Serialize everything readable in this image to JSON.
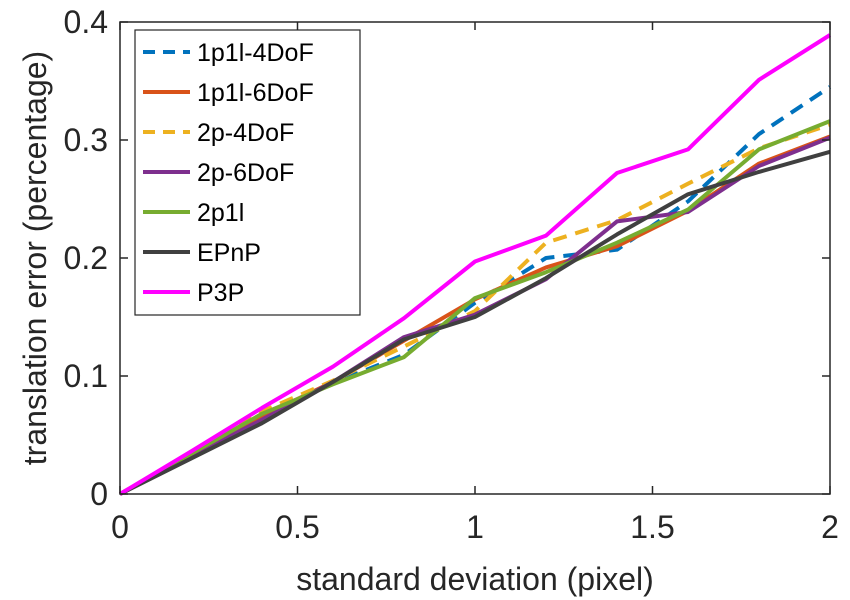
{
  "chart_data": {
    "type": "line",
    "xlabel": "standard deviation (pixel)",
    "ylabel": "translation error (percentage)",
    "xlim": [
      0,
      2
    ],
    "ylim": [
      0,
      0.4
    ],
    "xticks": [
      0,
      0.5,
      1,
      1.5,
      2
    ],
    "xtick_labels": [
      "0",
      "0.5",
      "1",
      "1.5",
      "2"
    ],
    "yticks": [
      0,
      0.1,
      0.2,
      0.3,
      0.4
    ],
    "ytick_labels": [
      "0",
      "0.1",
      "0.2",
      "0.3",
      "0.4"
    ],
    "grid": false,
    "legend_position": "top-left",
    "x": [
      0,
      0.2,
      0.4,
      0.6,
      0.8,
      1.0,
      1.2,
      1.4,
      1.6,
      1.8,
      2.0
    ],
    "series": [
      {
        "name": "1p1l-4DoF",
        "color": "#0072BD",
        "dash": "dashed",
        "values": [
          0,
          0.032,
          0.064,
          0.094,
          0.118,
          0.162,
          0.2,
          0.207,
          0.248,
          0.305,
          0.345
        ]
      },
      {
        "name": "1p1l-6DoF",
        "color": "#D95319",
        "dash": "solid",
        "values": [
          0,
          0.033,
          0.066,
          0.095,
          0.13,
          0.165,
          0.192,
          0.21,
          0.24,
          0.28,
          0.303
        ]
      },
      {
        "name": "2p-4DoF",
        "color": "#EDB120",
        "dash": "dashed",
        "values": [
          0,
          0.035,
          0.07,
          0.096,
          0.125,
          0.155,
          0.213,
          0.232,
          0.263,
          0.293,
          0.313
        ]
      },
      {
        "name": "2p-6DoF",
        "color": "#7E2F8E",
        "dash": "solid",
        "values": [
          0,
          0.032,
          0.063,
          0.095,
          0.133,
          0.152,
          0.182,
          0.231,
          0.239,
          0.278,
          0.302
        ]
      },
      {
        "name": "2p1l",
        "color": "#77AC30",
        "dash": "solid",
        "values": [
          0,
          0.034,
          0.068,
          0.093,
          0.116,
          0.166,
          0.188,
          0.213,
          0.241,
          0.292,
          0.316
        ]
      },
      {
        "name": "EPnP",
        "color": "#404040",
        "dash": "solid",
        "values": [
          0,
          0.03,
          0.06,
          0.095,
          0.131,
          0.15,
          0.183,
          0.22,
          0.254,
          0.273,
          0.29
        ]
      },
      {
        "name": "P3P",
        "color": "#FF00FF",
        "dash": "solid",
        "values": [
          0,
          0.036,
          0.073,
          0.108,
          0.149,
          0.197,
          0.219,
          0.272,
          0.292,
          0.351,
          0.389
        ]
      }
    ]
  }
}
